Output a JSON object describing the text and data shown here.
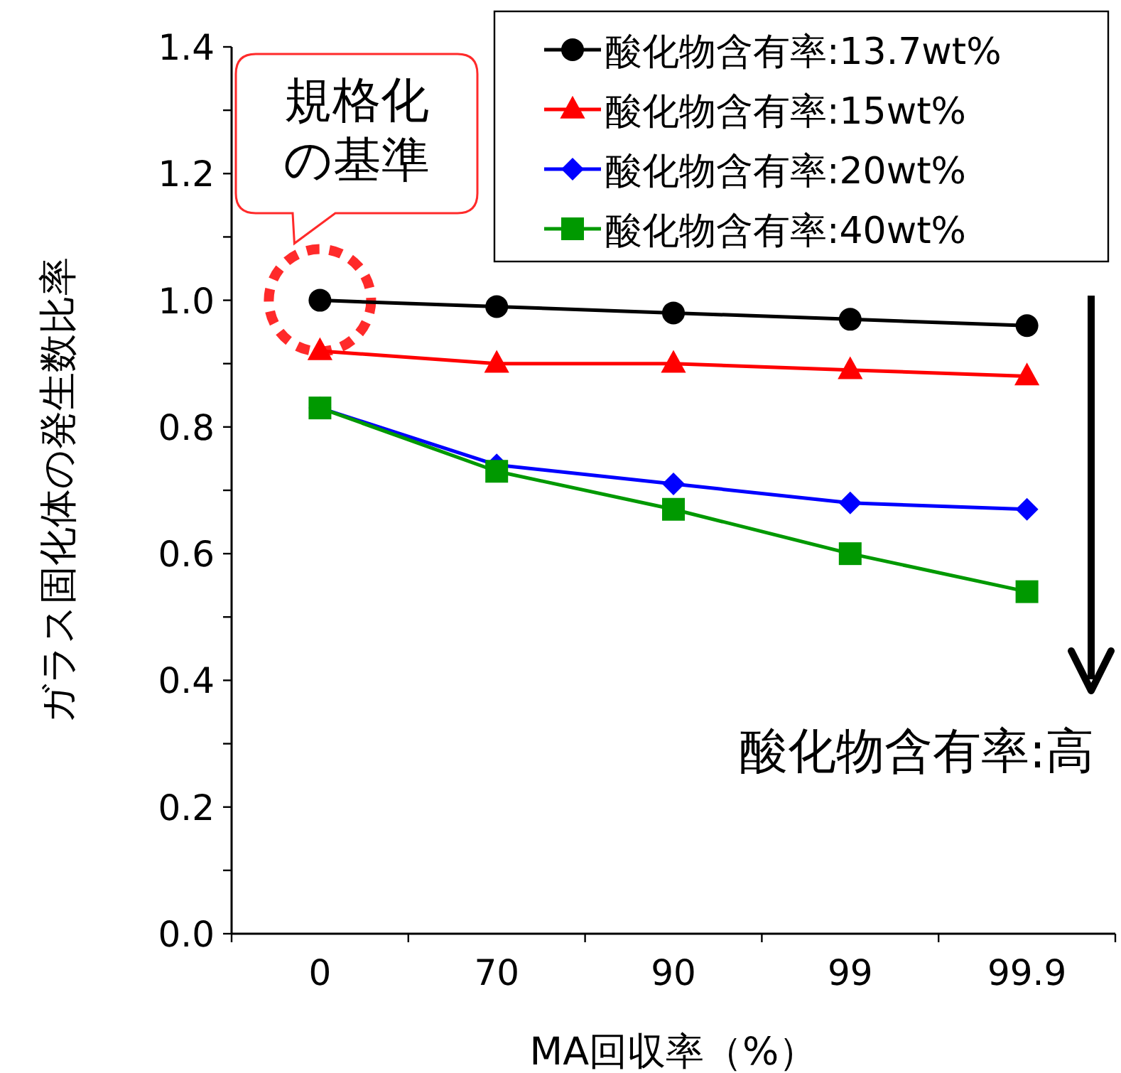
{
  "chart_data": {
    "type": "line",
    "ylabel": "ガラス固化体の発生数比率",
    "xlabel": "MA回収率（%）",
    "categories": [
      "0",
      "70",
      "90",
      "99",
      "99.9"
    ],
    "series": [
      {
        "name": "酸化物含有率:13.7wt%",
        "color": "#000000",
        "marker": "circle",
        "values": [
          1.0,
          0.99,
          0.98,
          0.97,
          0.96
        ]
      },
      {
        "name": "酸化物含有率:15wt%",
        "color": "#ff0000",
        "marker": "triangle",
        "values": [
          0.92,
          0.9,
          0.9,
          0.89,
          0.88
        ]
      },
      {
        "name": "酸化物含有率:20wt%",
        "color": "#0000ff",
        "marker": "diamond",
        "values": [
          0.83,
          0.74,
          0.71,
          0.68,
          0.67
        ]
      },
      {
        "name": "酸化物含有率:40wt%",
        "color": "#009900",
        "marker": "square",
        "values": [
          0.83,
          0.73,
          0.67,
          0.6,
          0.54
        ]
      }
    ],
    "ylim": [
      0,
      1.4
    ],
    "yticks": [
      {
        "value": 0,
        "label": "0.0"
      },
      {
        "value": 0.1,
        "label": null
      },
      {
        "value": 0.2,
        "label": "0.2"
      },
      {
        "value": 0.3,
        "label": null
      },
      {
        "value": 0.4,
        "label": "0.4"
      },
      {
        "value": 0.5,
        "label": null
      },
      {
        "value": 0.6,
        "label": "0.6"
      },
      {
        "value": 0.7,
        "label": null
      },
      {
        "value": 0.8,
        "label": "0.8"
      },
      {
        "value": 0.9,
        "label": null
      },
      {
        "value": 1.0,
        "label": "1.0"
      },
      {
        "value": 1.1,
        "label": null
      },
      {
        "value": 1.2,
        "label": "1.2"
      },
      {
        "value": 1.3,
        "label": null
      },
      {
        "value": 1.4,
        "label": "1.4"
      }
    ],
    "grid": false,
    "legend": "top right",
    "line_style": "solid",
    "annotations": [
      {
        "text": "規格化の基準",
        "x": "0",
        "y": 1.0
      },
      "酸化物含有率:高"
    ]
  }
}
